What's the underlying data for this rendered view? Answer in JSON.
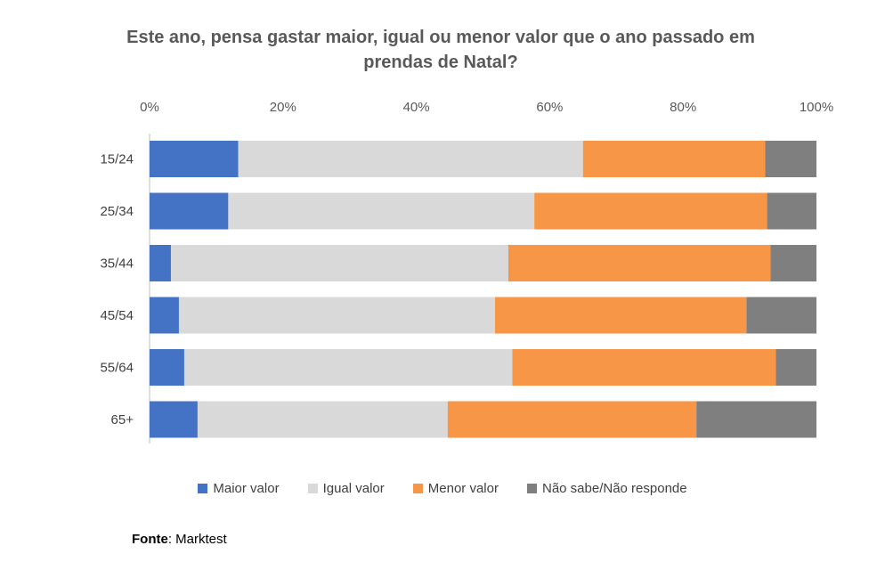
{
  "chart_data": {
    "type": "bar",
    "orientation": "horizontal",
    "stacked": "percent",
    "title": "Este ano, pensa gastar maior, igual ou menor valor que o ano passado em prendas de Natal?",
    "categories": [
      "15/24",
      "25/34",
      "35/44",
      "45/54",
      "55/64",
      "65+"
    ],
    "series": [
      {
        "name": "Maior valor",
        "color": "#4472C4",
        "values": [
          13.3,
          11.8,
          3.2,
          4.4,
          5.2,
          7.2
        ]
      },
      {
        "name": "Igual valor",
        "color": "#D9D9D9",
        "values": [
          51.7,
          45.9,
          50.6,
          47.4,
          49.2,
          37.5
        ]
      },
      {
        "name": "Menor valor",
        "color": "#F79646",
        "values": [
          27.3,
          34.9,
          39.3,
          37.7,
          39.5,
          37.3
        ]
      },
      {
        "name": "Não sabe/Não responde",
        "color": "#7F7F7F",
        "values": [
          7.7,
          7.4,
          6.9,
          10.5,
          6.1,
          18.0
        ]
      }
    ],
    "xlim": [
      0,
      100
    ],
    "x_ticks": [
      "0%",
      "20%",
      "40%",
      "60%",
      "80%",
      "100%"
    ],
    "x_axis_position": "top",
    "grid": false,
    "legend_position": "bottom"
  },
  "source": {
    "label": "Fonte",
    "value": ": Marktest"
  }
}
